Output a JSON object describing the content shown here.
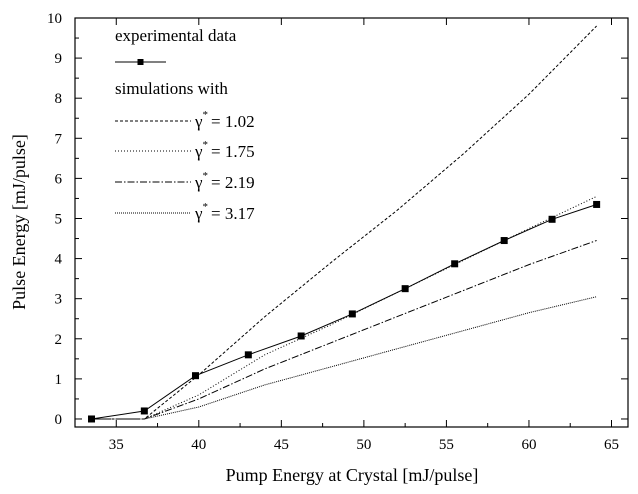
{
  "chart_data": {
    "type": "line",
    "xlabel": "Pump Energy at Crystal [mJ/pulse]",
    "ylabel": "Pulse Energy [mJ/pulse]",
    "xlim": [
      32.5,
      66
    ],
    "ylim": [
      -0.2,
      10
    ],
    "xticks": [
      35,
      40,
      45,
      50,
      55,
      60,
      65
    ],
    "yticks": [
      0,
      1,
      2,
      3,
      4,
      5,
      6,
      7,
      8,
      9,
      10
    ],
    "grid": false,
    "legend": {
      "placement": "top-left",
      "header_experimental": "experimental data",
      "header_simulations": "simulations with"
    },
    "series": [
      {
        "name": "experimental data",
        "style": "solid",
        "marker": "square",
        "x": [
          33.5,
          36.7,
          39.8,
          43.0,
          46.2,
          49.3,
          52.5,
          55.5,
          58.5,
          61.4,
          64.1
        ],
        "y": [
          0.0,
          0.2,
          1.08,
          1.6,
          2.07,
          2.62,
          3.25,
          3.87,
          4.45,
          4.98,
          5.35
        ]
      },
      {
        "name": "γ* = 1.02",
        "gamma_symbol": "γ",
        "gamma_sup": "*",
        "gamma_value": "= 1.02",
        "style": "dashed",
        "x": [
          33.5,
          36.7,
          40,
          44,
          48,
          52,
          56,
          60,
          64.1
        ],
        "y": [
          0.0,
          0.0,
          1.1,
          2.55,
          3.9,
          5.2,
          6.6,
          8.1,
          9.8
        ]
      },
      {
        "name": "γ* = 1.75",
        "gamma_symbol": "γ",
        "gamma_sup": "*",
        "gamma_value": "= 1.75",
        "style": "dotted",
        "x": [
          33.5,
          36.7,
          40,
          44,
          48,
          52,
          56,
          60,
          64.1
        ],
        "y": [
          0.0,
          0.0,
          0.6,
          1.6,
          2.35,
          3.15,
          3.95,
          4.75,
          5.55
        ]
      },
      {
        "name": "γ* = 2.19",
        "gamma_symbol": "γ",
        "gamma_sup": "*",
        "gamma_value": "= 2.19",
        "style": "dashdot",
        "x": [
          33.5,
          36.7,
          40,
          44,
          48,
          52,
          56,
          60,
          64.1
        ],
        "y": [
          0.0,
          0.0,
          0.5,
          1.25,
          1.9,
          2.55,
          3.2,
          3.85,
          4.45
        ]
      },
      {
        "name": "γ* = 3.17",
        "gamma_symbol": "γ",
        "gamma_sup": "*",
        "gamma_value": "= 3.17",
        "style": "densedot",
        "x": [
          33.5,
          36.7,
          40,
          44,
          48,
          52,
          56,
          60,
          64.1
        ],
        "y": [
          0.0,
          0.0,
          0.3,
          0.85,
          1.3,
          1.75,
          2.2,
          2.65,
          3.05
        ]
      }
    ]
  }
}
